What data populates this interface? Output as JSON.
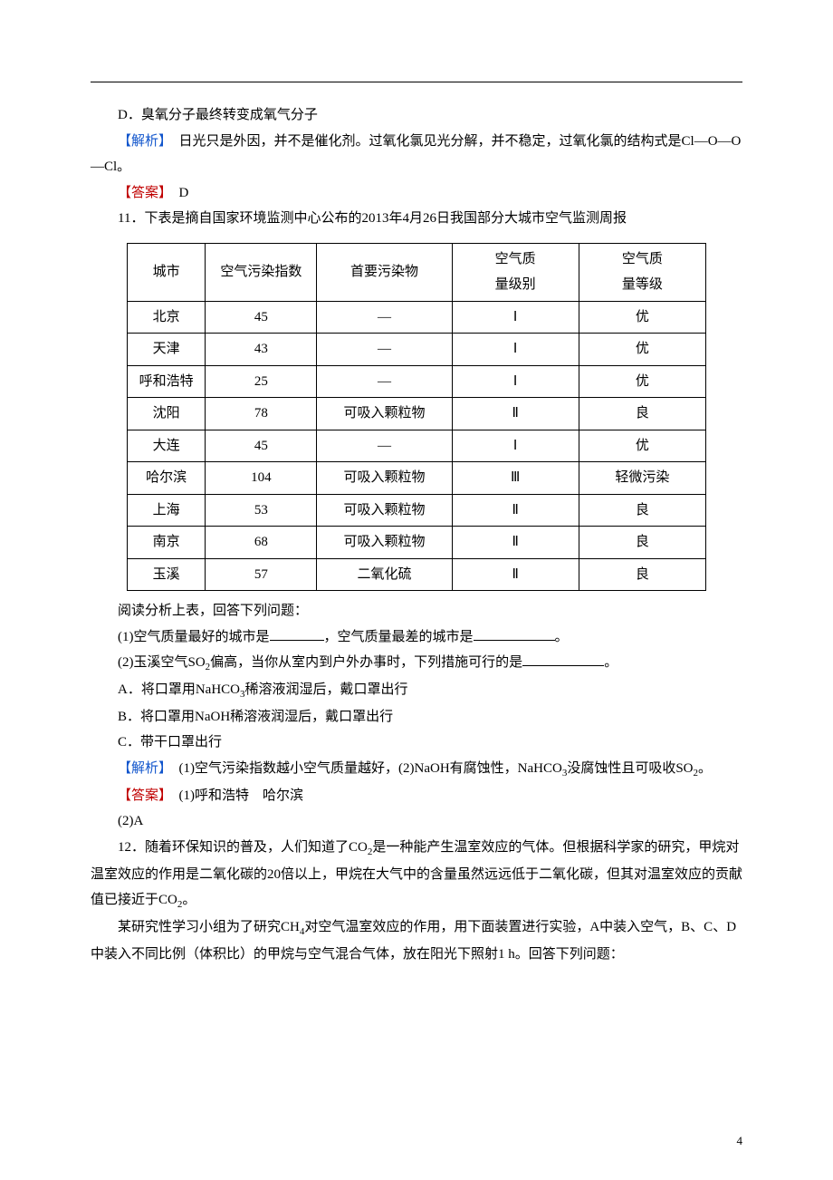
{
  "q10": {
    "optionD": "D．臭氧分子最终转变成氧气分子",
    "analysis_label": "【解析】",
    "analysis_text": "　日光只是外因，并不是催化剂。过氧化氯见光分解，并不稳定，过氧化氯的结构式是Cl—O—O—Cl。",
    "answer_label": "【答案】",
    "answer_text": "D"
  },
  "q11": {
    "stem": "11．下表是摘自国家环境监测中心公布的2013年4月26日我国部分大城市空气监测周报",
    "table": {
      "columns": [
        "城市",
        "空气污染指数",
        "首要污染物",
        "空气质\n量级别",
        "空气质\n量等级"
      ],
      "rows": [
        [
          "北京",
          "45",
          "—",
          "Ⅰ",
          "优"
        ],
        [
          "天津",
          "43",
          "—",
          "Ⅰ",
          "优"
        ],
        [
          "呼和浩特",
          "25",
          "—",
          "Ⅰ",
          "优"
        ],
        [
          "沈阳",
          "78",
          "可吸入颗粒物",
          "Ⅱ",
          "良"
        ],
        [
          "大连",
          "45",
          "—",
          "Ⅰ",
          "优"
        ],
        [
          "哈尔滨",
          "104",
          "可吸入颗粒物",
          "Ⅲ",
          "轻微污染"
        ],
        [
          "上海",
          "53",
          "可吸入颗粒物",
          "Ⅱ",
          "良"
        ],
        [
          "南京",
          "68",
          "可吸入颗粒物",
          "Ⅱ",
          "良"
        ],
        [
          "玉溪",
          "57",
          "二氧化硫",
          "Ⅱ",
          "良"
        ]
      ],
      "col_widths": [
        "80px",
        "120px",
        "150px",
        "140px",
        "140px"
      ]
    },
    "after_table": "阅读分析上表，回答下列问题：",
    "part1_a": "(1)空气质量最好的城市是",
    "part1_b": "，空气质量最差的城市是",
    "part1_c": "。",
    "part2_a": "(2)玉溪空气SO",
    "part2_sub": "2",
    "part2_b": "偏高，当你从室内到户外办事时，下列措施可行的是",
    "part2_c": "。",
    "optA_a": "A．将口罩用NaHCO",
    "optA_sub": "3",
    "optA_b": "稀溶液润湿后，戴口罩出行",
    "optB": "B．将口罩用NaOH稀溶液润湿后，戴口罩出行",
    "optC": "C．带干口罩出行",
    "analysis_label": "【解析】",
    "analysis_a": "　(1)空气污染指数越小空气质量越好，(2)NaOH有腐蚀性，NaHCO",
    "analysis_sub": "3",
    "analysis_b": "没腐蚀性且可吸收SO",
    "analysis_sub2": "2",
    "analysis_c": "。",
    "answer_label": "【答案】",
    "answer1": "(1)呼和浩特　哈尔滨",
    "answer2": "(2)A"
  },
  "q12": {
    "stem_a": "12．随着环保知识的普及，人们知道了CO",
    "stem_sub": "2",
    "stem_b": "是一种能产生温室效应的气体。但根据科学家的研究，甲烷对温室效应的作用是二氧化碳的20倍以上，甲烷在大气中的含量虽然远远低于二氧化碳，但其对温室效应的贡献值已接近于CO",
    "stem_sub2": "2",
    "stem_c": "。",
    "p2_a": "某研究性学习小组为了研究CH",
    "p2_sub": "4",
    "p2_b": "对空气温室效应的作用，用下面装置进行实验，A中装入空气，B、C、D中装入不同比例（体积比）的甲烷与空气混合气体，放在阳光下照射1 h。回答下列问题："
  },
  "page_number": "4"
}
